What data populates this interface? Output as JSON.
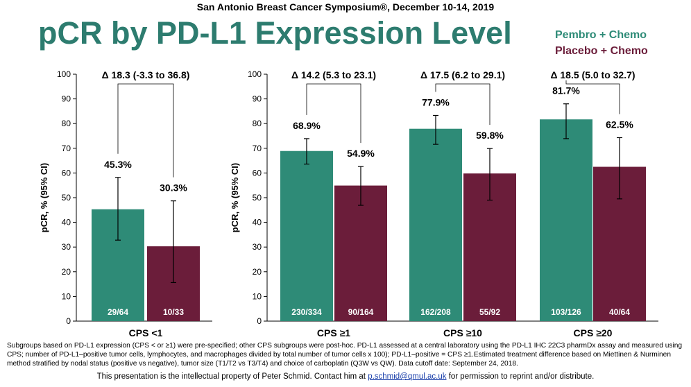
{
  "header": {
    "conference": "San Antonio Breast Cancer Symposium®, December 10-14, 2019",
    "title": "pCR by PD-L1 Expression Level"
  },
  "legend": {
    "items": [
      {
        "label": "Pembro + Chemo",
        "color": "#2e8b77"
      },
      {
        "label": "Placebo + Chemo",
        "color": "#6b1d3a"
      }
    ]
  },
  "chart_data": [
    {
      "type": "bar",
      "ylabel": "pCR, % (95% CI)",
      "ylim": [
        0,
        100
      ],
      "yticks": [
        0,
        10,
        20,
        30,
        40,
        50,
        60,
        70,
        80,
        90,
        100
      ],
      "groups": [
        {
          "category": "CPS <1",
          "delta": "Δ 18.3 (-3.3 to 36.8)",
          "bars": [
            {
              "series": "Pembro + Chemo",
              "value": 45.3,
              "label": "45.3%",
              "ci": [
                32.8,
                58.2
              ],
              "count": "29/64"
            },
            {
              "series": "Placebo + Chemo",
              "value": 30.3,
              "label": "30.3%",
              "ci": [
                15.6,
                48.7
              ],
              "count": "10/33"
            }
          ]
        }
      ]
    },
    {
      "type": "bar",
      "ylabel": "pCR, % (95% CI)",
      "ylim": [
        0,
        100
      ],
      "yticks": [
        0,
        10,
        20,
        30,
        40,
        50,
        60,
        70,
        80,
        90,
        100
      ],
      "groups": [
        {
          "category": "CPS ≥1",
          "delta": "Δ 14.2 (5.3 to 23.1)",
          "bars": [
            {
              "series": "Pembro + Chemo",
              "value": 68.9,
              "label": "68.9%",
              "ci": [
                63.6,
                73.9
              ],
              "count": "230/334"
            },
            {
              "series": "Placebo + Chemo",
              "value": 54.9,
              "label": "54.9%",
              "ci": [
                46.9,
                62.6
              ],
              "count": "90/164"
            }
          ]
        },
        {
          "category": "CPS ≥10",
          "delta": "Δ 17.5 (6.2 to 29.1)",
          "bars": [
            {
              "series": "Pembro + Chemo",
              "value": 77.9,
              "label": "77.9%",
              "ci": [
                71.6,
                83.3
              ],
              "count": "162/208"
            },
            {
              "series": "Placebo + Chemo",
              "value": 59.8,
              "label": "59.8%",
              "ci": [
                49.0,
                69.9
              ],
              "count": "55/92"
            }
          ]
        },
        {
          "category": "CPS ≥20",
          "delta": "Δ 18.5 (5.0 to 32.7)",
          "bars": [
            {
              "series": "Pembro + Chemo",
              "value": 81.7,
              "label": "81.7%",
              "ci": [
                73.9,
                88.0
              ],
              "count": "103/126"
            },
            {
              "series": "Placebo + Chemo",
              "value": 62.5,
              "label": "62.5%",
              "ci": [
                49.5,
                74.3
              ],
              "count": "40/64"
            }
          ]
        }
      ]
    }
  ],
  "footnote": "Subgroups based on PD-L1 expression (CPS < or ≥1) were pre-specified; other CPS subgroups were post-hoc. PD-L1 assessed at a central laboratory using the PD-L1 IHC 22C3 pharmDx assay and measured using CPS; number of PD-L1–positive tumor cells, lymphocytes, and macrophages divided by total number of tumor cells x 100); PD-L1–positive = CPS ≥1.Estimated treatment difference based on Miettinen & Nurminen method stratified by nodal status (positive vs negative), tumor size (T1/T2 vs T3/T4) and choice of carboplatin (Q3W vs QW). Data cutoff date: September 24, 2018.",
  "ip_notice": {
    "before": "This presentation is the intellectual property of Peter Schmid. Contact him at ",
    "email": "p.schmid@qmul.ac.uk",
    "after": " for permission to reprint and/or distribute."
  }
}
